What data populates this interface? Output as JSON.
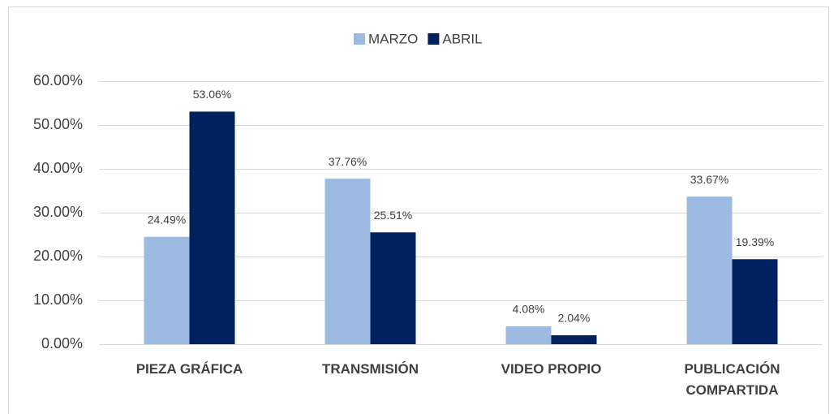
{
  "chart_data": {
    "type": "bar",
    "categories": [
      "PIEZA GRÁFICA",
      "TRANSMISIÓN",
      "VIDEO PROPIO",
      "PUBLICACIÓN COMPARTIDA"
    ],
    "series": [
      {
        "name": "MARZO",
        "color": "#9dbbe0",
        "values": [
          24.49,
          37.76,
          4.08,
          33.67
        ],
        "value_labels": [
          "24.49%",
          "37.76%",
          "4.08%",
          "33.67%"
        ]
      },
      {
        "name": "ABRIL",
        "color": "#002060",
        "values": [
          53.06,
          25.51,
          2.04,
          19.39
        ],
        "value_labels": [
          "53.06%",
          "25.51%",
          "2.04%",
          "19.39%"
        ]
      }
    ],
    "ylim": [
      0,
      60
    ],
    "yticks": [
      {
        "value": 0,
        "label": "0.00%"
      },
      {
        "value": 10,
        "label": "10.00%"
      },
      {
        "value": 20,
        "label": "20.00%"
      },
      {
        "value": 30,
        "label": "30.00%"
      },
      {
        "value": 40,
        "label": "40.00%"
      },
      {
        "value": 50,
        "label": "50.00%"
      },
      {
        "value": 60,
        "label": "60.00%"
      }
    ],
    "grid": true,
    "legend": "top"
  }
}
